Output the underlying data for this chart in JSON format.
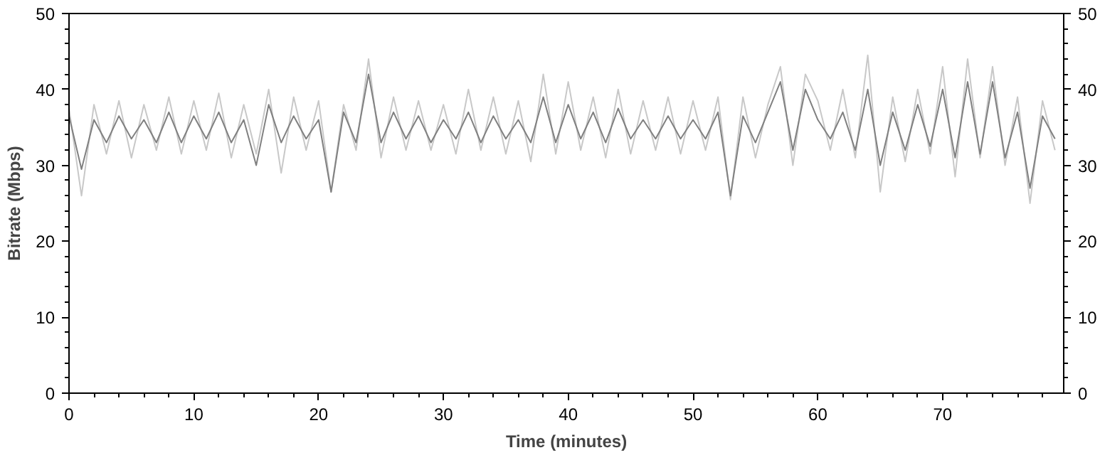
{
  "chart_data": {
    "type": "line",
    "xlabel": "Time (minutes)",
    "ylabel": "Bitrate (Mbps)",
    "x": [
      0,
      1,
      2,
      3,
      4,
      5,
      6,
      7,
      8,
      9,
      10,
      11,
      12,
      13,
      14,
      15,
      16,
      17,
      18,
      19,
      20,
      21,
      22,
      23,
      24,
      25,
      26,
      27,
      28,
      29,
      30,
      31,
      32,
      33,
      34,
      35,
      36,
      37,
      38,
      39,
      40,
      41,
      42,
      43,
      44,
      45,
      46,
      47,
      48,
      49,
      50,
      51,
      52,
      53,
      54,
      55,
      56,
      57,
      58,
      59,
      60,
      61,
      62,
      63,
      64,
      65,
      66,
      67,
      68,
      69,
      70,
      71,
      72,
      73,
      74,
      75,
      76,
      77,
      78,
      79
    ],
    "series": [
      {
        "color": "#c8c8c8",
        "values": [
          37.5,
          26,
          38,
          31.5,
          38.5,
          31,
          38,
          32,
          39,
          31.5,
          38.5,
          32,
          39.5,
          31,
          38,
          31.5,
          40,
          29,
          39,
          32,
          38.5,
          26.5,
          38,
          32,
          44,
          31,
          39,
          32,
          38.5,
          32,
          38,
          31.5,
          40,
          32,
          39,
          31.5,
          38.5,
          30.5,
          42,
          31.5,
          41,
          32,
          39,
          31,
          40,
          31.5,
          38.5,
          32,
          39,
          31.5,
          38.5,
          32,
          39,
          25.5,
          39,
          31,
          38,
          43,
          30,
          42,
          38.5,
          32,
          40,
          31,
          44.5,
          26.5,
          39,
          30.5,
          40,
          31.5,
          43,
          28.5,
          44,
          31,
          43,
          30,
          39,
          25,
          38.5,
          32
        ]
      },
      {
        "color": "#808080",
        "values": [
          36.5,
          29.5,
          36,
          33,
          36.5,
          33.5,
          36,
          33,
          37,
          33,
          36.5,
          33.5,
          37,
          33,
          36,
          30,
          38,
          33,
          36.5,
          33.5,
          36,
          26.5,
          37,
          33,
          42,
          33,
          37,
          33.5,
          36.5,
          33,
          36,
          33.5,
          37,
          33,
          36.5,
          33.5,
          36,
          33,
          39,
          33,
          38,
          33.5,
          37,
          33,
          37.5,
          33.5,
          36,
          33.5,
          36.5,
          33.5,
          36,
          33.5,
          37,
          26,
          36.5,
          33,
          37,
          41,
          32,
          40,
          36,
          33.5,
          37,
          32,
          40,
          30,
          37,
          32,
          38,
          32.5,
          40,
          31,
          41,
          31.5,
          41,
          31,
          37,
          27,
          36.5,
          33.5
        ]
      }
    ],
    "xlim": [
      0,
      79.7
    ],
    "ylim": [
      0,
      50
    ],
    "y2lim": [
      0,
      50
    ],
    "xticks": [
      0,
      10,
      20,
      30,
      40,
      50,
      60,
      70
    ],
    "yticks": [
      0,
      10,
      20,
      30,
      40,
      50
    ],
    "y2ticks": [
      0,
      10,
      20,
      30,
      40,
      50
    ],
    "grid": false
  }
}
